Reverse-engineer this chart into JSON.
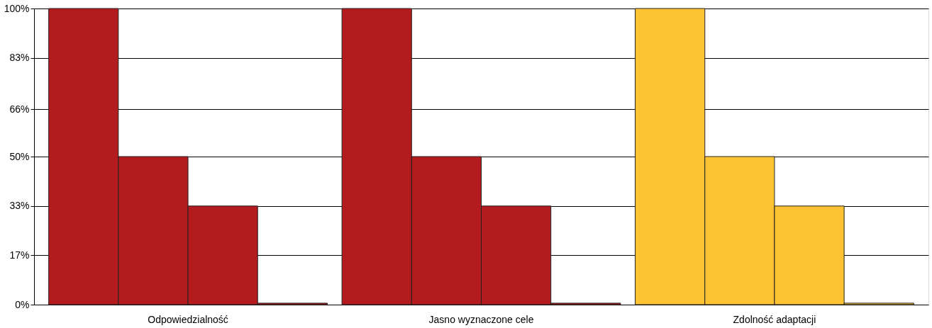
{
  "chart_data": {
    "type": "bar",
    "categories": [
      "Odpowiedzialność",
      "Jasno wyznaczone cele",
      "Zdolność adaptacji"
    ],
    "series": [
      {
        "colors": [
          "#b31b1e",
          "#b31b1e",
          "#fec332"
        ],
        "values": [
          100,
          100,
          100
        ]
      },
      {
        "colors": [
          "#b31b1e",
          "#b31b1e",
          "#fec332"
        ],
        "values": [
          50,
          50,
          50
        ]
      },
      {
        "colors": [
          "#b31b1e",
          "#b31b1e",
          "#fec332"
        ],
        "values": [
          33.3,
          33.3,
          33.3
        ]
      },
      {
        "colors": [
          "#b31b1e",
          "#b31b1e",
          "#fec332"
        ],
        "values": [
          0.5,
          0.5,
          0.5
        ]
      }
    ],
    "ylim": [
      0,
      100
    ],
    "yticks": [
      {
        "value": 0,
        "label": "0%"
      },
      {
        "value": 16.67,
        "label": "17%"
      },
      {
        "value": 33.33,
        "label": "33%"
      },
      {
        "value": 50,
        "label": "50%"
      },
      {
        "value": 66,
        "label": "66%"
      },
      {
        "value": 83.33,
        "label": "83%"
      },
      {
        "value": 100,
        "label": "100%"
      }
    ],
    "grid": "y"
  }
}
